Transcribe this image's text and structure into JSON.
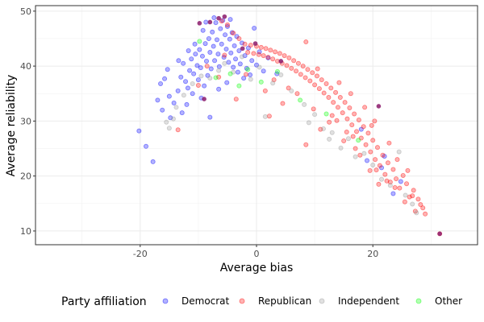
{
  "chart_data": {
    "type": "scatter",
    "title": "",
    "xlabel": "Average bias",
    "ylabel": "Average reliability",
    "xlim": [
      -38,
      38
    ],
    "ylim": [
      7.5,
      51
    ],
    "x_ticks": [
      -20,
      0,
      20
    ],
    "y_ticks": [
      10,
      20,
      30,
      40,
      50
    ],
    "x_tick_labels": [
      "-20",
      "0",
      "20"
    ],
    "y_tick_labels": [
      "10",
      "20",
      "30",
      "40",
      "50"
    ],
    "grid": true,
    "legend": {
      "title": "Party affiliation",
      "placement": "bottom",
      "items": [
        {
          "name": "Democrat",
          "color": "#0000ff"
        },
        {
          "name": "Republican",
          "color": "#ff0000"
        },
        {
          "name": "Independent",
          "color": "#999999"
        },
        {
          "name": "Other",
          "color": "#00ff00"
        }
      ]
    },
    "series": [
      {
        "name": "Democrat",
        "color": "#0000ff",
        "points": [
          [
            -20.2,
            28.2
          ],
          [
            -19.0,
            25.4
          ],
          [
            -17.8,
            22.6
          ],
          [
            -17.0,
            33.8
          ],
          [
            -16.5,
            36.8
          ],
          [
            -15.8,
            37.7
          ],
          [
            -15.0,
            34.5
          ],
          [
            -14.2,
            33.3
          ],
          [
            -13.5,
            35.5
          ],
          [
            -13.0,
            38.0
          ],
          [
            -12.6,
            40.5
          ],
          [
            -12.2,
            37.2
          ],
          [
            -11.8,
            36.0
          ],
          [
            -11.5,
            39.2
          ],
          [
            -11.2,
            41.3
          ],
          [
            -11.0,
            35.0
          ],
          [
            -10.8,
            38.6
          ],
          [
            -10.5,
            42.2
          ],
          [
            -10.2,
            40.1
          ],
          [
            -10.0,
            37.5
          ],
          [
            -9.8,
            43.0
          ],
          [
            -9.6,
            39.7
          ],
          [
            -9.3,
            41.8
          ],
          [
            -9.0,
            36.4
          ],
          [
            -8.8,
            44.1
          ],
          [
            -8.6,
            40.9
          ],
          [
            -8.4,
            38.3
          ],
          [
            -8.2,
            45.0
          ],
          [
            -8.0,
            42.5
          ],
          [
            -8.0,
            30.7
          ],
          [
            -7.8,
            39.5
          ],
          [
            -7.6,
            46.2
          ],
          [
            -7.4,
            43.6
          ],
          [
            -7.2,
            41.0
          ],
          [
            -7.0,
            47.9
          ],
          [
            -6.8,
            44.8
          ],
          [
            -6.6,
            42.2
          ],
          [
            -6.4,
            39.9
          ],
          [
            -6.2,
            46.8
          ],
          [
            -6.0,
            44.0
          ],
          [
            -5.8,
            48.3
          ],
          [
            -5.6,
            41.6
          ],
          [
            -5.4,
            45.7
          ],
          [
            -5.2,
            43.1
          ],
          [
            -5.0,
            47.2
          ],
          [
            -4.8,
            40.7
          ],
          [
            -4.6,
            44.9
          ],
          [
            -4.4,
            42.4
          ],
          [
            -4.2,
            46.1
          ],
          [
            -4.0,
            39.8
          ],
          [
            -3.8,
            43.7
          ],
          [
            -3.6,
            41.3
          ],
          [
            -3.4,
            45.4
          ],
          [
            -3.2,
            38.9
          ],
          [
            -3.0,
            42.8
          ],
          [
            -2.8,
            40.4
          ],
          [
            -2.5,
            44.2
          ],
          [
            -2.2,
            37.8
          ],
          [
            -2.0,
            41.9
          ],
          [
            -1.7,
            39.6
          ],
          [
            -1.4,
            43.3
          ],
          [
            -1.1,
            38.4
          ],
          [
            -0.8,
            41.0
          ],
          [
            -0.4,
            46.9
          ],
          [
            0.0,
            40.2
          ],
          [
            0.5,
            42.6
          ],
          [
            1.2,
            39.1
          ],
          [
            2.0,
            41.5
          ],
          [
            3.5,
            38.6
          ],
          [
            -9.5,
            34.2
          ],
          [
            -12.0,
            33.0
          ],
          [
            -14.8,
            30.6
          ],
          [
            -8.7,
            48.0
          ],
          [
            -7.3,
            48.8
          ],
          [
            -6.5,
            35.8
          ],
          [
            -5.1,
            37.0
          ],
          [
            -10.6,
            44.0
          ],
          [
            -11.7,
            42.8
          ],
          [
            -13.4,
            41.0
          ],
          [
            -15.3,
            39.4
          ],
          [
            19.0,
            22.8
          ],
          [
            21.5,
            21.5
          ],
          [
            23.5,
            16.8
          ],
          [
            24.8,
            19.0
          ],
          [
            22.0,
            23.6
          ],
          [
            18.0,
            28.5
          ],
          [
            -16.2,
            32.0
          ],
          [
            -12.8,
            31.5
          ],
          [
            -9.2,
            46.5
          ],
          [
            -4.5,
            48.5
          ]
        ]
      },
      {
        "name": "Republican",
        "color": "#ff0000",
        "points": [
          [
            31.5,
            9.5
          ],
          [
            29.0,
            13.1
          ],
          [
            28.6,
            14.2
          ],
          [
            27.8,
            15.8
          ],
          [
            27.0,
            17.4
          ],
          [
            26.3,
            16.2
          ],
          [
            25.8,
            18.6
          ],
          [
            25.2,
            20.1
          ],
          [
            24.6,
            17.8
          ],
          [
            24.0,
            19.5
          ],
          [
            23.5,
            21.2
          ],
          [
            23.0,
            18.9
          ],
          [
            22.6,
            22.4
          ],
          [
            22.1,
            20.3
          ],
          [
            21.7,
            23.8
          ],
          [
            21.2,
            21.9
          ],
          [
            20.8,
            25.2
          ],
          [
            20.4,
            23.0
          ],
          [
            20.0,
            26.5
          ],
          [
            19.6,
            24.4
          ],
          [
            19.2,
            27.8
          ],
          [
            18.8,
            25.7
          ],
          [
            18.4,
            29.0
          ],
          [
            18.0,
            26.9
          ],
          [
            17.6,
            30.2
          ],
          [
            17.2,
            28.1
          ],
          [
            16.8,
            31.3
          ],
          [
            16.4,
            29.3
          ],
          [
            16.0,
            32.4
          ],
          [
            15.6,
            30.4
          ],
          [
            15.2,
            33.4
          ],
          [
            14.8,
            31.5
          ],
          [
            14.4,
            34.3
          ],
          [
            14.0,
            32.5
          ],
          [
            13.6,
            35.2
          ],
          [
            13.2,
            33.4
          ],
          [
            12.8,
            36.0
          ],
          [
            12.4,
            34.3
          ],
          [
            12.0,
            36.8
          ],
          [
            11.6,
            35.1
          ],
          [
            11.2,
            37.5
          ],
          [
            10.8,
            35.9
          ],
          [
            10.4,
            38.2
          ],
          [
            10.0,
            36.6
          ],
          [
            9.6,
            38.8
          ],
          [
            9.2,
            37.3
          ],
          [
            8.8,
            39.4
          ],
          [
            8.4,
            37.9
          ],
          [
            8.0,
            40.0
          ],
          [
            7.6,
            38.5
          ],
          [
            7.2,
            40.5
          ],
          [
            6.8,
            39.1
          ],
          [
            6.4,
            41.0
          ],
          [
            6.0,
            39.6
          ],
          [
            5.6,
            41.5
          ],
          [
            5.2,
            40.1
          ],
          [
            4.8,
            41.9
          ],
          [
            4.4,
            40.5
          ],
          [
            4.0,
            42.3
          ],
          [
            3.6,
            40.9
          ],
          [
            3.2,
            42.6
          ],
          [
            2.8,
            41.3
          ],
          [
            2.4,
            42.9
          ],
          [
            2.0,
            41.6
          ],
          [
            1.6,
            43.2
          ],
          [
            1.2,
            41.9
          ],
          [
            0.8,
            43.4
          ],
          [
            0.4,
            42.1
          ],
          [
            0.0,
            43.6
          ],
          [
            -0.5,
            42.3
          ],
          [
            -1.0,
            43.8
          ],
          [
            -1.5,
            42.5
          ],
          [
            -2.0,
            44.0
          ],
          [
            -3.0,
            45.0
          ],
          [
            -4.0,
            46.0
          ],
          [
            -5.0,
            47.5
          ],
          [
            -6.0,
            48.2
          ],
          [
            8.5,
            44.4
          ],
          [
            10.5,
            39.5
          ],
          [
            13.0,
            31.0
          ],
          [
            15.5,
            28.0
          ],
          [
            17.0,
            25.0
          ],
          [
            19.5,
            21.0
          ],
          [
            8.5,
            25.7
          ],
          [
            11.0,
            28.5
          ],
          [
            22.8,
            26.0
          ],
          [
            24.2,
            23.0
          ],
          [
            26.0,
            21.0
          ],
          [
            20.3,
            30.0
          ],
          [
            18.6,
            32.5
          ],
          [
            16.2,
            35.0
          ],
          [
            14.2,
            37.0
          ],
          [
            5.5,
            36.0
          ],
          [
            3.0,
            37.5
          ],
          [
            1.5,
            35.5
          ],
          [
            -1.8,
            38.5
          ],
          [
            -3.5,
            34.0
          ],
          [
            -6.5,
            38.0
          ],
          [
            -10.0,
            36.5
          ],
          [
            -13.5,
            28.4
          ],
          [
            -8.5,
            40.0
          ],
          [
            -5.5,
            42.0
          ],
          [
            21.0,
            18.5
          ],
          [
            25.5,
            15.3
          ],
          [
            26.8,
            16.4
          ],
          [
            23.8,
            17.9
          ],
          [
            22.4,
            19.1
          ],
          [
            20.6,
            21.1
          ],
          [
            17.8,
            23.8
          ],
          [
            15.0,
            26.4
          ],
          [
            12.5,
            29.8
          ],
          [
            9.8,
            32.2
          ],
          [
            7.0,
            35.0
          ],
          [
            4.5,
            33.2
          ],
          [
            2.2,
            30.9
          ],
          [
            28.2,
            14.8
          ],
          [
            27.3,
            13.6
          ],
          [
            19.8,
            29.2
          ],
          [
            16.6,
            27.2
          ],
          [
            13.8,
            30.1
          ]
        ]
      },
      {
        "name": "Independent",
        "color": "#999999",
        "points": [
          [
            -15.5,
            29.8
          ],
          [
            -15.0,
            28.7
          ],
          [
            -14.3,
            30.4
          ],
          [
            -13.8,
            32.5
          ],
          [
            -12.5,
            34.7
          ],
          [
            -11.0,
            36.8
          ],
          [
            -9.5,
            38.2
          ],
          [
            -8.0,
            37.8
          ],
          [
            -6.5,
            39.2
          ],
          [
            -5.5,
            40.5
          ],
          [
            -4.0,
            38.9
          ],
          [
            -2.5,
            41.7
          ],
          [
            -1.0,
            37.6
          ],
          [
            0.5,
            39.8
          ],
          [
            1.5,
            30.8
          ],
          [
            2.8,
            36.9
          ],
          [
            4.2,
            38.4
          ],
          [
            6.0,
            35.5
          ],
          [
            8.2,
            33.0
          ],
          [
            10.0,
            31.2
          ],
          [
            11.5,
            28.6
          ],
          [
            13.0,
            27.9
          ],
          [
            14.5,
            25.1
          ],
          [
            15.8,
            26.8
          ],
          [
            17.0,
            23.5
          ],
          [
            18.5,
            24.1
          ],
          [
            20.0,
            22.0
          ],
          [
            21.5,
            19.4
          ],
          [
            23.0,
            18.3
          ],
          [
            24.5,
            24.4
          ],
          [
            25.6,
            16.5
          ],
          [
            26.8,
            14.9
          ],
          [
            27.5,
            13.3
          ],
          [
            12.5,
            26.7
          ],
          [
            9.0,
            29.7
          ]
        ]
      },
      {
        "name": "Other",
        "color": "#00ff00",
        "points": [
          [
            -7.0,
            37.9
          ],
          [
            -4.5,
            38.6
          ],
          [
            -1.5,
            39.4
          ],
          [
            0.8,
            37.1
          ],
          [
            3.6,
            39.0
          ],
          [
            7.5,
            33.8
          ],
          [
            12.0,
            31.3
          ],
          [
            17.5,
            26.5
          ],
          [
            -9.8,
            44.5
          ],
          [
            -3.0,
            36.4
          ]
        ]
      }
    ],
    "overlap_color": "#8b1a6b",
    "overlap_points": [
      [
        31.5,
        9.5
      ],
      [
        21.0,
        32.7
      ],
      [
        -8.0,
        48.0
      ],
      [
        -6.5,
        48.7
      ],
      [
        -5.5,
        49.0
      ],
      [
        -9.0,
        34.0
      ],
      [
        -9.8,
        47.8
      ],
      [
        4.2,
        40.9
      ],
      [
        -2.4,
        43.2
      ],
      [
        -0.2,
        44.1
      ]
    ]
  }
}
